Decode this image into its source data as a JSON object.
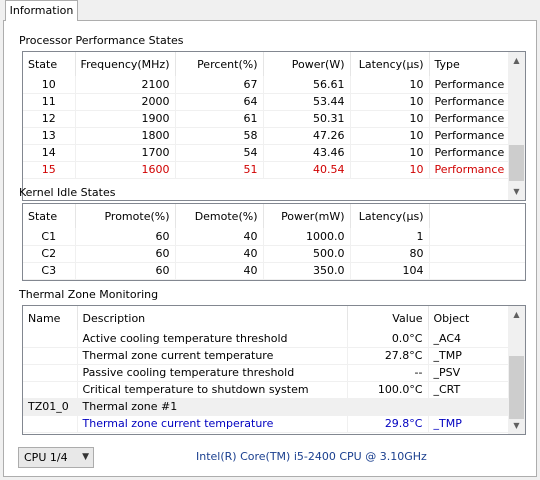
{
  "tab": {
    "label": "Information"
  },
  "perf": {
    "title": "Processor Performance States",
    "headers": [
      "State",
      "Frequency(MHz)",
      "Percent(%)",
      "Power(W)",
      "Latency(µs)",
      "Type"
    ],
    "rows": [
      [
        "10",
        "2100",
        "67",
        "56.61",
        "10",
        "Performance"
      ],
      [
        "11",
        "2000",
        "64",
        "53.44",
        "10",
        "Performance"
      ],
      [
        "12",
        "1900",
        "61",
        "50.31",
        "10",
        "Performance"
      ],
      [
        "13",
        "1800",
        "58",
        "47.26",
        "10",
        "Performance"
      ],
      [
        "14",
        "1700",
        "54",
        "43.46",
        "10",
        "Performance"
      ],
      [
        "15",
        "1600",
        "51",
        "40.54",
        "10",
        "Performance"
      ]
    ],
    "highlight_color": "#d00000"
  },
  "idle": {
    "title": "Kernel Idle States",
    "headers": [
      "State",
      "Promote(%)",
      "Demote(%)",
      "Power(mW)",
      "Latency(µs)"
    ],
    "rows": [
      [
        "C1",
        "60",
        "40",
        "1000.0",
        "1"
      ],
      [
        "C2",
        "60",
        "40",
        "500.0",
        "80"
      ],
      [
        "C3",
        "60",
        "40",
        "350.0",
        "104"
      ]
    ]
  },
  "thermal": {
    "title": "Thermal Zone Monitoring",
    "headers": [
      "Name",
      "Description",
      "Value",
      "Object"
    ],
    "rows": [
      [
        "",
        "Active cooling temperature threshold",
        "0.0°C",
        "_AC4"
      ],
      [
        "",
        "Thermal zone current temperature",
        "27.8°C",
        "_TMP"
      ],
      [
        "",
        "Passive cooling temperature threshold",
        "--",
        "_PSV"
      ],
      [
        "",
        "Critical temperature to shutdown system",
        "100.0°C",
        "_CRT"
      ],
      [
        "TZ01_0",
        "Thermal zone #1",
        "",
        ""
      ],
      [
        "",
        "Thermal zone current temperature",
        "29.8°C",
        "_TMP"
      ]
    ],
    "highlight_color": "#0000c0"
  },
  "footer": {
    "cpu_select": "CPU 1/4",
    "cpu_name": "Intel(R) Core(TM) i5-2400 CPU @ 3.10GHz"
  },
  "icons": [
    "scroll-up-icon",
    "scroll-down-icon",
    "chevron-down-icon"
  ]
}
